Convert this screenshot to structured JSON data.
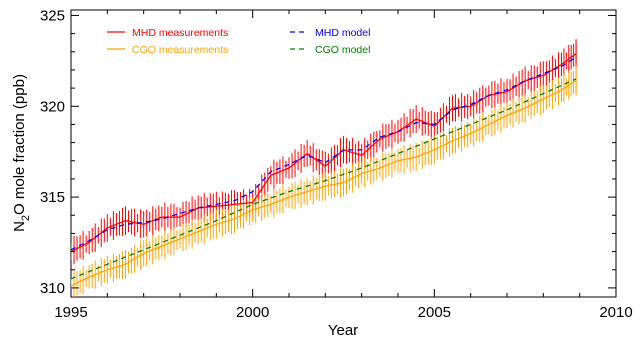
{
  "chart_data": {
    "type": "line",
    "xlabel": "Year",
    "ylabel_parts": [
      "N",
      "2",
      "O mole fraction (ppb)"
    ],
    "xlim": [
      1995,
      2010
    ],
    "ylim": [
      309.5,
      325.3
    ],
    "xticks": [
      1995,
      2000,
      2005,
      2010
    ],
    "yticks": [
      310,
      315,
      320,
      325
    ],
    "x_minor_step": 1,
    "y_minor_step": 1,
    "grid": false,
    "legend_placement": "top-left",
    "series": [
      {
        "name": "MHD measurements",
        "style": "solid",
        "color": "#ff0000",
        "x": [
          1995.0,
          1995.5,
          1996.0,
          1996.5,
          1997.0,
          1997.5,
          1998.0,
          1998.5,
          1999.0,
          1999.5,
          2000.0,
          2000.5,
          2001.0,
          2001.5,
          2002.0,
          2002.5,
          2003.0,
          2003.5,
          2004.0,
          2004.5,
          2005.0,
          2005.5,
          2006.0,
          2006.5,
          2007.0,
          2007.5,
          2008.0,
          2008.5,
          2008.9
        ],
        "y": [
          312.0,
          312.5,
          313.3,
          313.7,
          313.5,
          313.9,
          313.9,
          314.4,
          314.5,
          314.6,
          314.7,
          316.2,
          316.6,
          317.4,
          316.7,
          317.6,
          317.3,
          318.2,
          318.6,
          319.3,
          318.9,
          319.9,
          320.0,
          320.6,
          320.8,
          321.4,
          321.7,
          322.3,
          322.9
        ],
        "error_bars": true
      },
      {
        "name": "CGO measurements",
        "style": "solid",
        "color": "#ffa500",
        "x": [
          1995.0,
          1995.5,
          1996.0,
          1996.5,
          1997.0,
          1997.5,
          1998.0,
          1998.5,
          1999.0,
          1999.5,
          2000.0,
          2000.5,
          2001.0,
          2001.5,
          2002.0,
          2002.5,
          2003.0,
          2003.5,
          2004.0,
          2004.5,
          2005.0,
          2005.5,
          2006.0,
          2006.5,
          2007.0,
          2007.5,
          2008.0,
          2008.5,
          2008.9
        ],
        "y": [
          310.1,
          310.6,
          311.0,
          311.3,
          311.9,
          312.3,
          312.7,
          313.1,
          313.5,
          313.8,
          314.3,
          314.6,
          315.0,
          315.3,
          315.6,
          315.8,
          316.3,
          316.6,
          317.0,
          317.2,
          317.6,
          318.1,
          318.5,
          319.0,
          319.5,
          319.9,
          320.4,
          320.9,
          321.4
        ],
        "error_bars": true
      },
      {
        "name": "MHD model",
        "style": "dashed",
        "color": "#0000ff",
        "x": [
          1995.0,
          1995.5,
          1996.0,
          1996.5,
          1997.0,
          1997.5,
          1998.0,
          1998.5,
          1999.0,
          1999.5,
          2000.0,
          2000.5,
          2001.0,
          2001.5,
          2002.0,
          2002.5,
          2003.0,
          2003.5,
          2004.0,
          2004.5,
          2005.0,
          2005.5,
          2006.0,
          2006.5,
          2007.0,
          2007.5,
          2008.0,
          2008.5,
          2008.9
        ],
        "y": [
          312.1,
          312.6,
          313.2,
          313.5,
          313.6,
          313.8,
          314.1,
          314.4,
          314.6,
          314.8,
          315.3,
          316.4,
          316.8,
          317.3,
          316.9,
          317.6,
          317.6,
          318.3,
          318.6,
          319.1,
          319.0,
          319.8,
          320.1,
          320.6,
          320.9,
          321.4,
          321.8,
          322.2,
          322.7
        ]
      },
      {
        "name": "CGO model",
        "style": "dashed",
        "color": "#008000",
        "x": [
          1995.0,
          1996.0,
          1997.0,
          1998.0,
          1999.0,
          2000.0,
          2001.0,
          2002.0,
          2003.0,
          2004.0,
          2005.0,
          2006.0,
          2007.0,
          2008.0,
          2008.9
        ],
        "y": [
          310.5,
          311.3,
          312.1,
          312.9,
          313.7,
          314.6,
          315.3,
          315.9,
          316.6,
          317.4,
          318.2,
          319.0,
          319.8,
          320.7,
          321.5
        ]
      }
    ]
  }
}
